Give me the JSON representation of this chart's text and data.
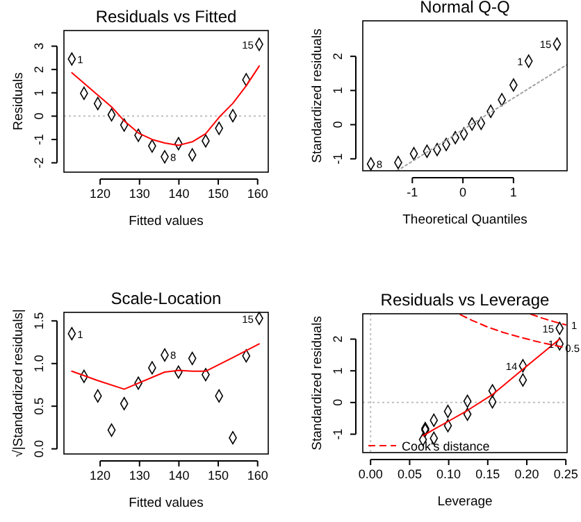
{
  "chart_data": [
    {
      "type": "scatter",
      "title": "Residuals vs Fitted",
      "xlabel": "Fitted values",
      "ylabel": "Residuals",
      "xlim": [
        110.8,
        162.7
      ],
      "ylim": [
        -2.4,
        3.67
      ],
      "xticks": [
        120,
        130,
        140,
        150,
        160
      ],
      "yticks": [
        -2,
        -1,
        0,
        1,
        2,
        3
      ],
      "series": [
        {
          "type": "scatter",
          "marker": "diamond",
          "color": "#000000",
          "x": [
            112.8,
            115.9,
            119.4,
            122.9,
            126.1,
            129.7,
            133.2,
            136.4,
            139.9,
            143.4,
            146.8,
            150.2,
            153.7,
            157.1,
            160.4
          ],
          "values": [
            2.45,
            0.98,
            0.54,
            0.06,
            -0.38,
            -0.82,
            -1.28,
            -1.74,
            -1.18,
            -1.66,
            -1.06,
            -0.52,
            0.02,
            1.56,
            3.08
          ]
        },
        {
          "type": "line",
          "marker": "none",
          "color": "#ff0000",
          "x": [
            112.8,
            119.4,
            122.9,
            126.1,
            129.7,
            133.2,
            136.4,
            139.9,
            143.4,
            146.8,
            150.2,
            153.7,
            157.1,
            160.4
          ],
          "values": [
            1.86,
            0.9,
            0.4,
            -0.2,
            -0.72,
            -1.0,
            -1.15,
            -1.25,
            -1.1,
            -0.75,
            -0.05,
            0.55,
            1.3,
            2.15
          ]
        }
      ],
      "ref_lines": [
        {
          "axis": "y",
          "value": 0,
          "color": "#c0c0c0",
          "line_style": "dotted"
        }
      ],
      "annotations": [
        {
          "text": "1",
          "x": 112.8,
          "y": 2.45
        },
        {
          "text": "8",
          "x": 136.4,
          "y": -1.74
        },
        {
          "text": "15",
          "x": 160.4,
          "y": 3.08
        }
      ]
    },
    {
      "type": "scatter",
      "title": "Normal Q-Q",
      "xlabel": "Theoretical Quantiles",
      "ylabel": "Standardized residuals",
      "xlim": [
        -1.98,
        2.06
      ],
      "ylim": [
        -1.35,
        3.04
      ],
      "xticks": [
        -1,
        0,
        1
      ],
      "yticks": [
        -1,
        0,
        1,
        2
      ],
      "series": [
        {
          "type": "scatter",
          "marker": "diamond",
          "color": "#000000",
          "x": [
            -1.82,
            -1.28,
            -0.97,
            -0.71,
            -0.51,
            -0.33,
            -0.15,
            0.02,
            0.18,
            0.36,
            0.55,
            0.77,
            1.0,
            1.3,
            1.86
          ],
          "values": [
            -1.15,
            -1.11,
            -0.85,
            -0.78,
            -0.73,
            -0.58,
            -0.38,
            -0.27,
            0.02,
            0.04,
            0.39,
            0.73,
            1.16,
            1.86,
            2.36
          ]
        },
        {
          "type": "line",
          "marker": "none",
          "color": "#a0a0a0",
          "line_style": "dotted",
          "x": [
            -1.3,
            2.06
          ],
          "values": [
            -1.35,
            1.76
          ]
        }
      ],
      "annotations": [
        {
          "text": "8",
          "x": -1.82,
          "y": -1.15
        },
        {
          "text": "1",
          "x": 1.3,
          "y": 1.86
        },
        {
          "text": "15",
          "x": 1.86,
          "y": 2.36
        }
      ]
    },
    {
      "type": "scatter",
      "title": "Scale-Location",
      "xlabel": "Fitted values",
      "ylabel": "√|Standardized residuals|",
      "xlim": [
        110.8,
        162.7
      ],
      "ylim": [
        -0.06,
        1.6
      ],
      "xticks": [
        120,
        130,
        140,
        150,
        160
      ],
      "yticks": [
        {
          "value": 0,
          "label": "0.0"
        },
        {
          "value": 0.5,
          "label": "0.5"
        },
        {
          "value": 1,
          "label": "1.0"
        },
        {
          "value": 1.5,
          "label": "1.5"
        }
      ],
      "series": [
        {
          "type": "scatter",
          "marker": "diamond",
          "color": "#000000",
          "x": [
            112.8,
            115.9,
            119.4,
            122.9,
            126.1,
            129.7,
            133.2,
            136.4,
            139.9,
            143.4,
            146.8,
            150.2,
            153.7,
            157.1,
            160.4
          ],
          "values": [
            1.35,
            0.85,
            0.62,
            0.22,
            0.53,
            0.77,
            0.95,
            1.1,
            0.9,
            1.06,
            0.87,
            0.62,
            0.13,
            1.09,
            1.53
          ]
        },
        {
          "type": "line",
          "marker": "none",
          "color": "#ff0000",
          "x": [
            112.8,
            119.4,
            126.1,
            136.4,
            139.9,
            143.4,
            146.8,
            153.7,
            160.4
          ],
          "values": [
            0.91,
            0.8,
            0.7,
            0.9,
            0.92,
            0.91,
            0.91,
            1.07,
            1.23
          ]
        }
      ],
      "annotations": [
        {
          "text": "1",
          "x": 112.8,
          "y": 1.35
        },
        {
          "text": "8",
          "x": 136.4,
          "y": 1.1
        },
        {
          "text": "15",
          "x": 160.4,
          "y": 1.53
        }
      ]
    },
    {
      "type": "scatter",
      "title": "Residuals vs Leverage",
      "xlabel": "Leverage",
      "ylabel": "Standardized residuals",
      "xlim": [
        -0.01,
        0.2516
      ],
      "ylim": [
        -1.58,
        2.8
      ],
      "xticks": [
        {
          "value": 0,
          "label": "0.00"
        },
        {
          "value": 0.05,
          "label": "0.05"
        },
        {
          "value": 0.1,
          "label": "0.10"
        },
        {
          "value": 0.15,
          "label": "0.15"
        },
        {
          "value": 0.2,
          "label": "0.20"
        },
        {
          "value": 0.25,
          "label": "0.25"
        }
      ],
      "yticks": [
        -1,
        0,
        1,
        2
      ],
      "legend": "bottom left",
      "series": [
        {
          "type": "scatter",
          "marker": "diamond",
          "color": "#000000",
          "x": [
            0.242,
            0.195,
            0.156,
            0.124,
            0.099,
            0.081,
            0.07,
            0.067,
            0.07,
            0.081,
            0.099,
            0.124,
            0.156,
            0.195,
            0.242
          ],
          "values": [
            1.85,
            0.71,
            0.37,
            0.04,
            -0.28,
            -0.56,
            -0.87,
            -1.17,
            -0.82,
            -1.13,
            -0.73,
            -0.37,
            0.02,
            1.16,
            2.34
          ]
        },
        {
          "type": "line",
          "marker": "none",
          "color": "#ff0000",
          "x": [
            0.067,
            0.081,
            0.099,
            0.124,
            0.156,
            0.195,
            0.242
          ],
          "values": [
            -1.05,
            -0.85,
            -0.6,
            -0.25,
            0.25,
            1.05,
            2.0
          ]
        },
        {
          "type": "line",
          "marker": "none",
          "name": "Cook's distance",
          "color": "#ff0000",
          "line_style": "dashed",
          "x": [
            0.115,
            0.13,
            0.15,
            0.17,
            0.19,
            0.21,
            0.23,
            0.25
          ],
          "values": [
            2.77,
            2.59,
            2.38,
            2.21,
            2.07,
            1.94,
            1.83,
            1.73
          ]
        },
        {
          "type": "line",
          "marker": "none",
          "color": "#ff0000",
          "line_style": "dashed",
          "x": [
            0.205,
            0.22,
            0.235,
            0.25
          ],
          "values": [
            2.79,
            2.66,
            2.55,
            2.45
          ]
        }
      ],
      "ref_lines": [
        {
          "axis": "y",
          "value": 0,
          "color": "#c0c0c0",
          "line_style": "dotted"
        },
        {
          "axis": "x",
          "value": 0,
          "color": "#c0c0c0",
          "line_style": "dotted"
        }
      ],
      "annotations": [
        {
          "text": "1",
          "x": 0.242,
          "y": 1.85
        },
        {
          "text": "14",
          "x": 0.195,
          "y": 1.16
        },
        {
          "text": "15",
          "x": 0.242,
          "y": 2.34
        },
        {
          "text": "1",
          "x": 0.2516,
          "y": 2.45
        },
        {
          "text": "0.5",
          "x": 0.2516,
          "y": 1.73
        }
      ]
    }
  ]
}
